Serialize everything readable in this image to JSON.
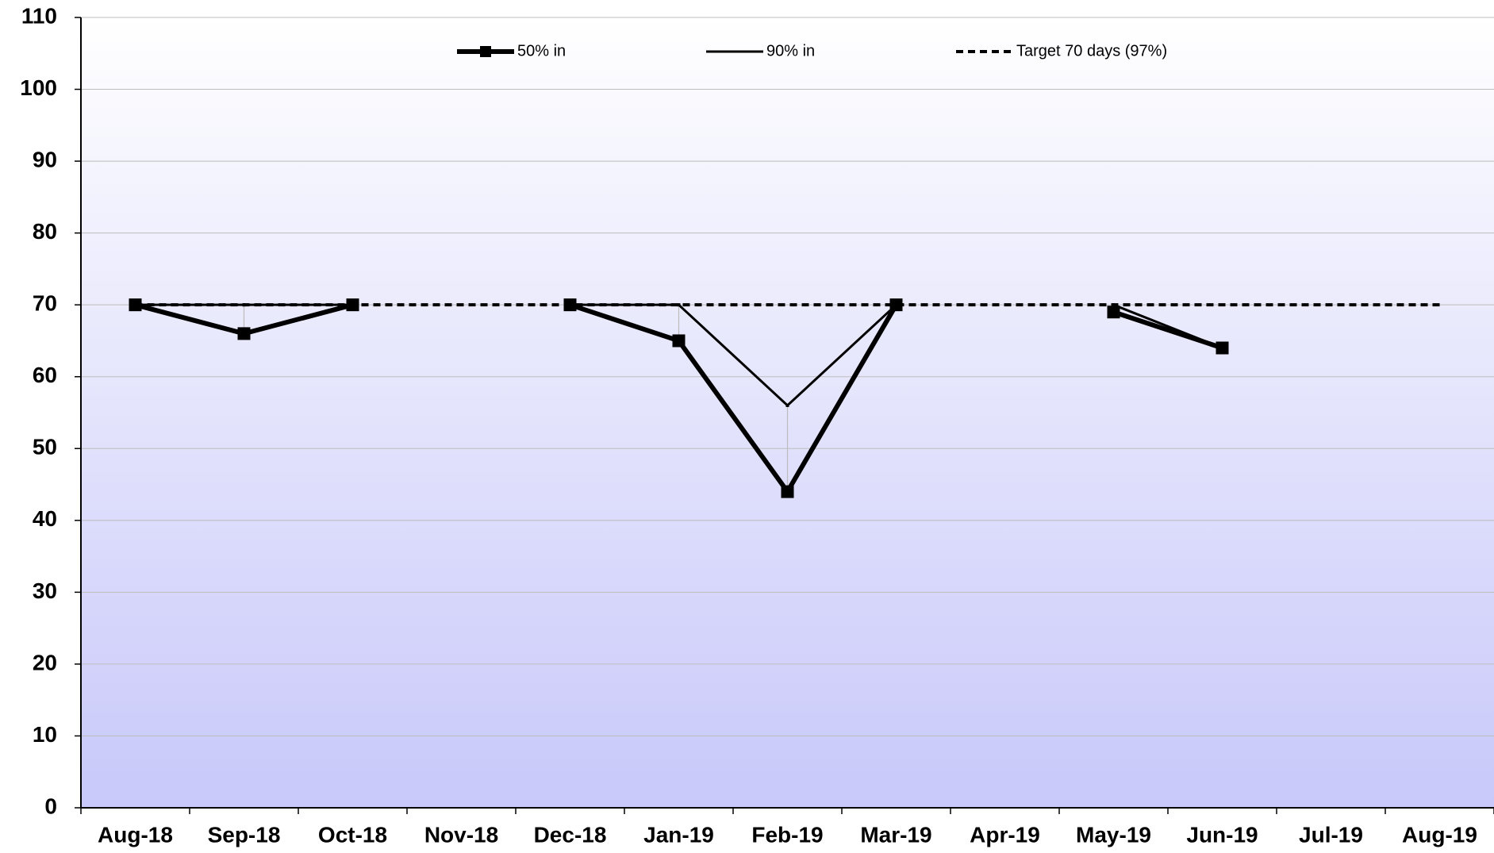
{
  "chart_data": {
    "type": "line",
    "categories": [
      "Aug-18",
      "Sep-18",
      "Oct-18",
      "Nov-18",
      "Dec-18",
      "Jan-19",
      "Feb-19",
      "Mar-19",
      "Apr-19",
      "May-19",
      "Jun-19",
      "Jul-19",
      "Aug-19"
    ],
    "series": [
      {
        "name": "50% in",
        "color": "#000000",
        "values": [
          70,
          66,
          70,
          null,
          70,
          65,
          44,
          70,
          null,
          69,
          64,
          null,
          null
        ]
      },
      {
        "name": "90% in",
        "color": "#000000",
        "values": [
          70,
          70,
          70,
          null,
          70,
          70,
          56,
          70,
          null,
          70,
          64,
          null,
          null
        ]
      },
      {
        "name": "Target 70 days (97%)",
        "color": "#000000",
        "values": [
          70,
          70,
          70,
          70,
          70,
          70,
          70,
          70,
          70,
          70,
          70,
          70,
          70
        ]
      }
    ],
    "ylim": [
      0,
      110
    ],
    "yticks": [
      0,
      10,
      20,
      30,
      40,
      50,
      60,
      70,
      80,
      90,
      100,
      110
    ],
    "grid": true,
    "legend": "top"
  }
}
